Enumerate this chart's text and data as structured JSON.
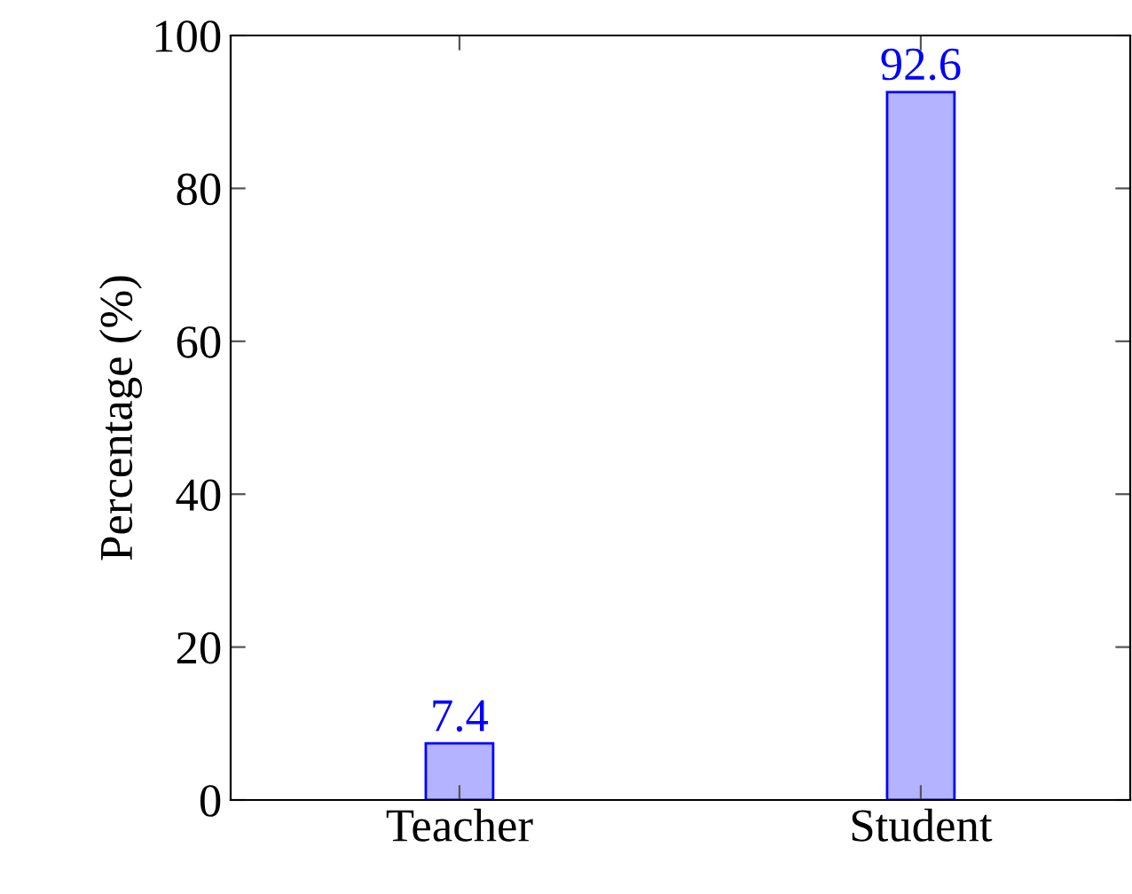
{
  "chart_data": {
    "type": "bar",
    "ylabel": "Percentage (%)",
    "categories": [
      "Teacher",
      "Student"
    ],
    "values": [
      7.4,
      92.6
    ],
    "color": "#b3b3ff",
    "ylim": [
      0,
      100
    ],
    "yticks": [
      0,
      20,
      40,
      60,
      80,
      100
    ],
    "data_labels": true,
    "grid": false,
    "legend": false
  }
}
